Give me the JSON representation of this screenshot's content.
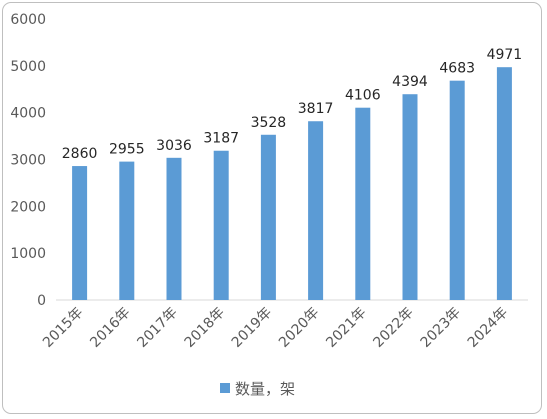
{
  "chart_data": {
    "type": "bar",
    "categories": [
      "2015年",
      "2016年",
      "2017年",
      "2018年",
      "2019年",
      "2020年",
      "2021年",
      "2022年",
      "2023年",
      "2024年"
    ],
    "series": [
      {
        "name": "数量，架",
        "values": [
          2860,
          2955,
          3036,
          3187,
          3528,
          3817,
          4106,
          4394,
          4683,
          4971
        ],
        "color": "#5b9bd5"
      }
    ],
    "ylim": [
      0,
      6000
    ],
    "yticks": [
      0,
      1000,
      2000,
      3000,
      4000,
      5000,
      6000
    ],
    "grid": false,
    "legend_position": "bottom",
    "data_labels": true
  }
}
